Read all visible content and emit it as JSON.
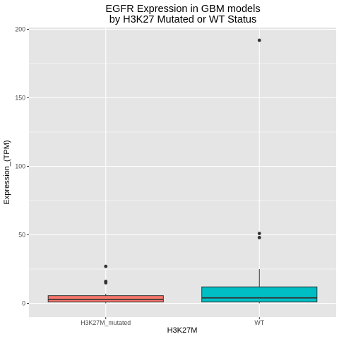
{
  "chart_data": {
    "type": "box",
    "title_lines": [
      "EGFR Expression in GBM models",
      "by H3K27 Mutated or WT Status"
    ],
    "xlabel": "H3K27M",
    "ylabel": "Expression_(TPM)",
    "ylim": [
      -10,
      200
    ],
    "yticks": [
      0,
      50,
      100,
      150,
      200
    ],
    "grid": true,
    "legend": "none",
    "panel_color": "#e5e5e5",
    "grid_color": "#ffffff",
    "categories": [
      "H3K27M_mutated",
      "WT"
    ],
    "boxes": [
      {
        "name": "H3K27M_mutated",
        "color": "#f8766d",
        "whisker_low": 0,
        "q1": 1,
        "median": 2.8,
        "q3": 5.6,
        "whisker_high": 7,
        "outliers": [
          27,
          16,
          15
        ]
      },
      {
        "name": "WT",
        "color": "#00bfc4",
        "whisker_low": 0,
        "q1": 1,
        "median": 4,
        "q3": 12,
        "whisker_high": 25,
        "outliers": [
          192,
          51,
          48
        ]
      }
    ]
  }
}
